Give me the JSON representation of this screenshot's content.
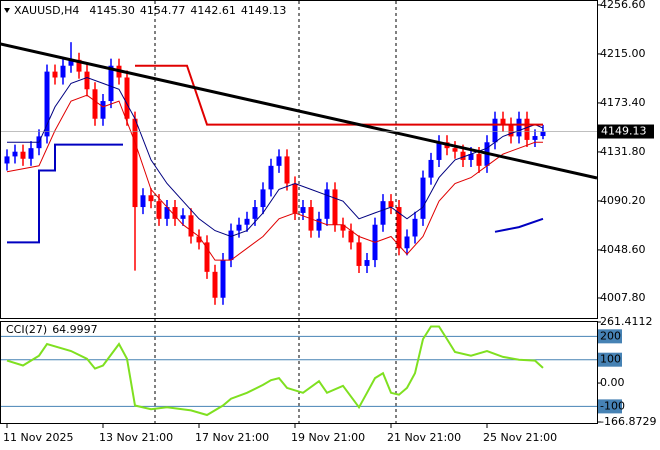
{
  "chart_data": [
    {
      "type": "candlestick",
      "symbol": "XAUUSD,H4",
      "header_values": [
        "4145.30",
        "4154.77",
        "4142.61",
        "4149.13"
      ],
      "x": [
        0,
        1,
        2,
        3,
        4,
        5,
        6,
        7,
        8,
        9,
        10,
        11,
        12,
        13,
        14,
        15,
        16,
        17,
        18,
        19,
        20,
        21,
        22,
        23,
        24,
        25,
        26,
        27,
        28,
        29,
        30,
        31,
        32,
        33,
        34,
        35,
        36,
        37,
        38,
        39,
        40,
        41,
        42,
        43,
        44,
        45,
        46,
        47,
        48,
        49,
        50,
        51,
        52,
        53,
        54,
        55,
        56,
        57,
        58,
        59,
        60,
        61,
        62,
        63,
        64,
        65,
        66,
        67
      ],
      "open": [
        4122,
        4128,
        4132,
        4126,
        4135,
        4145,
        4200,
        4195,
        4205,
        4210,
        4200,
        4185,
        4160,
        4175,
        4205,
        4195,
        4160,
        4085,
        4095,
        4090,
        4075,
        4085,
        4075,
        4078,
        4060,
        4055,
        4030,
        4008,
        4040,
        4065,
        4070,
        4075,
        4085,
        4100,
        4120,
        4128,
        4105,
        4080,
        4085,
        4065,
        4075,
        4100,
        4070,
        4065,
        4055,
        4035,
        4040,
        4070,
        4090,
        4085,
        4050,
        4060,
        4075,
        4110,
        4125,
        4140,
        4135,
        4132,
        4125,
        4130,
        4120,
        4140,
        4160,
        4155,
        4145,
        4160,
        4142,
        4145.3
      ],
      "high": [
        4134,
        4138,
        4138,
        4141,
        4151,
        4206,
        4206,
        4211,
        4225,
        4216,
        4206,
        4191,
        4181,
        4211,
        4211,
        4201,
        4166,
        4101,
        4101,
        4096,
        4091,
        4091,
        4084,
        4084,
        4066,
        4061,
        4036,
        4046,
        4071,
        4076,
        4081,
        4091,
        4106,
        4126,
        4134,
        4134,
        4111,
        4091,
        4091,
        4081,
        4106,
        4106,
        4076,
        4071,
        4061,
        4046,
        4076,
        4096,
        4096,
        4091,
        4066,
        4081,
        4116,
        4131,
        4146,
        4146,
        4141,
        4138,
        4136,
        4136,
        4146,
        4166,
        4166,
        4161,
        4166,
        4166,
        4151,
        4154.77
      ],
      "low": [
        4116,
        4122,
        4120,
        4120,
        4129,
        4139,
        4189,
        4189,
        4199,
        4194,
        4179,
        4154,
        4154,
        4169,
        4189,
        4154,
        4031,
        4079,
        4084,
        4069,
        4069,
        4069,
        4069,
        4054,
        4049,
        4024,
        4002,
        4002,
        4034,
        4059,
        4064,
        4069,
        4079,
        4094,
        4114,
        4099,
        4074,
        4074,
        4059,
        4059,
        4069,
        4064,
        4059,
        4049,
        4029,
        4029,
        4034,
        4064,
        4079,
        4044,
        4044,
        4054,
        4069,
        4104,
        4119,
        4129,
        4126,
        4119,
        4119,
        4114,
        4114,
        4134,
        4149,
        4139,
        4139,
        4136,
        4136,
        4142.61
      ],
      "close": [
        4128,
        4132,
        4126,
        4135,
        4145,
        4200,
        4195,
        4205,
        4210,
        4200,
        4185,
        4160,
        4175,
        4205,
        4195,
        4160,
        4085,
        4095,
        4090,
        4075,
        4085,
        4075,
        4078,
        4060,
        4055,
        4030,
        4008,
        4040,
        4065,
        4070,
        4075,
        4085,
        4100,
        4120,
        4128,
        4105,
        4080,
        4085,
        4065,
        4075,
        4100,
        4070,
        4065,
        4055,
        4035,
        4040,
        4070,
        4090,
        4085,
        4050,
        4060,
        4075,
        4110,
        4125,
        4140,
        4135,
        4132,
        4125,
        4130,
        4120,
        4140,
        4160,
        4155,
        4145,
        4160,
        4142,
        4145.3,
        4149.13
      ],
      "up_color": "#0000ff",
      "down_color": "#ff0000",
      "xlim": [
        -0.875,
        73.75
      ],
      "ylim": [
        3990.8,
        4260.8
      ],
      "yticks": [
        {
          "value": 4256.6,
          "label": "4256.60"
        },
        {
          "value": 4215,
          "label": "4215.00"
        },
        {
          "value": 4173.4,
          "label": "4173.40"
        },
        {
          "value": 4131.8,
          "label": "4131.80"
        },
        {
          "value": 4090.2,
          "label": "4090.20"
        },
        {
          "value": 4048.6,
          "label": "4048.60"
        },
        {
          "value": 4007.8,
          "label": "4007.80"
        }
      ],
      "lines": [
        {
          "color": "#000080",
          "width": 1,
          "x": [
            0,
            4,
            6,
            8,
            10,
            12,
            14,
            16,
            18,
            20,
            22,
            24,
            26,
            28,
            30,
            32,
            34,
            36,
            38,
            40,
            42,
            44,
            46,
            48,
            50,
            52,
            54,
            56,
            58,
            60,
            62,
            64,
            66,
            67
          ],
          "values": [
            4140,
            4140,
            4170,
            4190,
            4195,
            4190,
            4185,
            4160,
            4125,
            4105,
            4090,
            4075,
            4065,
            4060,
            4065,
            4080,
            4100,
            4105,
            4100,
            4095,
            4090,
            4075,
            4080,
            4085,
            4075,
            4085,
            4110,
            4125,
            4130,
            4135,
            4145,
            4150,
            4155,
            4152
          ]
        },
        {
          "color": "#e00000",
          "width": 1,
          "x": [
            0,
            4,
            6,
            8,
            10,
            12,
            14,
            16,
            18,
            20,
            22,
            24,
            26,
            28,
            30,
            32,
            34,
            36,
            38,
            40,
            42,
            44,
            46,
            48,
            50,
            52,
            54,
            56,
            58,
            60,
            62,
            64,
            66,
            67
          ],
          "values": [
            4115,
            4120,
            4150,
            4175,
            4180,
            4170,
            4175,
            4140,
            4100,
            4085,
            4070,
            4060,
            4040,
            4040,
            4050,
            4060,
            4075,
            4080,
            4075,
            4070,
            4070,
            4060,
            4055,
            4060,
            4045,
            4060,
            4090,
            4105,
            4110,
            4120,
            4130,
            4135,
            4140,
            4140
          ]
        },
        {
          "color": "#0000c0",
          "width": 2,
          "x": [
            0,
            4,
            4,
            6,
            6,
            14.5
          ],
          "values": [
            4055,
            4055,
            4116,
            4116,
            4138,
            4138
          ]
        },
        {
          "color": "#0000c0",
          "width": 2,
          "x": [
            61,
            64,
            67
          ],
          "values": [
            4064,
            4068,
            4075
          ]
        },
        {
          "color": "#e00000",
          "width": 2,
          "x": [
            16,
            22.5,
            25,
            67
          ],
          "values": [
            4205,
            4205,
            4155,
            4155
          ]
        },
        {
          "color": "#000000",
          "width": 3,
          "x": [
            -0.875,
            73.75
          ],
          "values": [
            4223.5,
            4109.7
          ]
        }
      ]
    },
    {
      "type": "line",
      "label": "CCI(27)",
      "color": "#7fe020",
      "x": [
        0,
        2,
        4,
        5,
        8,
        10,
        11,
        12,
        14,
        15,
        16,
        18,
        20,
        23,
        25,
        27,
        28,
        30,
        32,
        33,
        34,
        35,
        37,
        39,
        40,
        42,
        44,
        45,
        46,
        47,
        48,
        49,
        50,
        51,
        52,
        53,
        54,
        55,
        56,
        58,
        60,
        62,
        64,
        66,
        67
      ],
      "values": [
        96,
        75,
        117,
        167,
        137,
        104,
        62,
        75,
        167,
        104,
        -96,
        -112,
        -104,
        -117,
        -137,
        -96,
        -67,
        -42,
        -8,
        12,
        21,
        -21,
        -42,
        8,
        -42,
        -12,
        -104,
        -42,
        21,
        42,
        -42,
        -50,
        -21,
        42,
        188,
        242,
        242,
        188,
        133,
        117,
        137,
        112,
        100,
        96,
        64.9997
      ],
      "xlim": [
        -0.875,
        73.75
      ],
      "ylim": [
        -166.8729,
        261.4112
      ],
      "yticks": [
        261.4112,
        200,
        100,
        {
          "value": 0,
          "label": "0.00"
        },
        -100,
        -166.8729
      ],
      "levels": [
        200,
        100,
        -100
      ],
      "level_color": "#4682b4",
      "xticks": [
        {
          "value": 0,
          "label": "11 Nov 2025"
        },
        {
          "value": 12,
          "label": "13 Nov 21:00"
        },
        {
          "value": 24,
          "label": "17 Nov 21:00"
        },
        {
          "value": 36,
          "label": "19 Nov 21:00"
        },
        {
          "value": 48,
          "label": "21 Nov 21:00"
        },
        {
          "value": 60,
          "label": "25 Nov 21:00"
        }
      ]
    }
  ]
}
